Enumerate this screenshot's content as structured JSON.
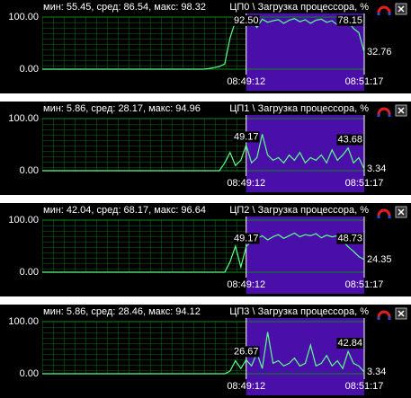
{
  "chart_data": [
    {
      "type": "line",
      "subtitle": "мин: 55.45, сред: 86.54, макс: 98.32",
      "title": "ЦП0 \\ Загрузка процессора, %",
      "color": "#5cff8a",
      "values": [
        0,
        0,
        0,
        0,
        0,
        0,
        0,
        0,
        0,
        0,
        0,
        0,
        0,
        0,
        0,
        0,
        0,
        0,
        0,
        0,
        0,
        0,
        0,
        0,
        0,
        0,
        0,
        0,
        0,
        0,
        0,
        1,
        3,
        5,
        10,
        60,
        92,
        85,
        92.5,
        95,
        80,
        96,
        90,
        93,
        95,
        88,
        94,
        97,
        91,
        95,
        88,
        94,
        96,
        90,
        93,
        85,
        95,
        92,
        78.15,
        70,
        32.76
      ],
      "ylim": [
        0,
        100
      ],
      "yticks": [
        {
          "value": 100,
          "label": "100.00"
        },
        {
          "value": 0,
          "label": "0.00"
        }
      ],
      "xlim": [
        0,
        60
      ],
      "xticks": [
        {
          "value": 38,
          "label": "08:49:12"
        },
        {
          "value": 60,
          "label": "08:51:17"
        }
      ],
      "annotations": [
        {
          "value": 92.5,
          "label": "92.50"
        },
        {
          "value": 78.15,
          "label": "78.15"
        },
        {
          "value": 32.76,
          "label": "32.76"
        }
      ]
    },
    {
      "type": "line",
      "subtitle": "мин: 5.86, сред: 28.17, макс: 94.96",
      "title": "ЦП1 \\ Загрузка процессора, %",
      "color": "#5cff8a",
      "values": [
        0,
        0,
        0,
        0,
        0,
        0,
        0,
        0,
        0,
        0,
        0,
        0,
        0,
        0,
        0,
        0,
        0,
        0,
        0,
        0,
        0,
        0,
        0,
        0,
        0,
        0,
        0,
        0,
        0,
        0,
        0,
        0,
        0,
        0,
        15,
        35,
        10,
        20,
        49.17,
        15,
        25,
        70,
        30,
        20,
        25,
        15,
        30,
        20,
        35,
        15,
        25,
        20,
        30,
        15,
        40,
        20,
        30,
        43.68,
        15,
        25,
        3.34
      ],
      "ylim": [
        0,
        100
      ],
      "yticks": [
        {
          "value": 100,
          "label": "100.00"
        },
        {
          "value": 0,
          "label": "0.00"
        }
      ],
      "xlim": [
        0,
        60
      ],
      "xticks": [
        {
          "value": 38,
          "label": "08:49:12"
        },
        {
          "value": 60,
          "label": "08:51:17"
        }
      ],
      "annotations": [
        {
          "value": 49.17,
          "label": "49.17"
        },
        {
          "value": 43.68,
          "label": "43.68"
        },
        {
          "value": 3.34,
          "label": "3.34"
        }
      ]
    },
    {
      "type": "line",
      "subtitle": "мин: 42.04, сред: 68.17, макс: 96.64",
      "title": "ЦП2 \\ Загрузка процессора, %",
      "color": "#5cff8a",
      "values": [
        0,
        0,
        0,
        0,
        0,
        0,
        0,
        0,
        0,
        0,
        0,
        0,
        0,
        0,
        0,
        0,
        0,
        0,
        0,
        0,
        0,
        0,
        0,
        0,
        0,
        0,
        0,
        0,
        0,
        0,
        0,
        0,
        0,
        0,
        0,
        20,
        50,
        10,
        49.17,
        60,
        65,
        70,
        62,
        68,
        72,
        65,
        70,
        75,
        68,
        72,
        70,
        74,
        66,
        71,
        68,
        70,
        60,
        48.73,
        40,
        30,
        24.35
      ],
      "ylim": [
        0,
        100
      ],
      "yticks": [
        {
          "value": 100,
          "label": "100.00"
        },
        {
          "value": 0,
          "label": "0.00"
        }
      ],
      "xlim": [
        0,
        60
      ],
      "xticks": [
        {
          "value": 38,
          "label": "08:49:12"
        },
        {
          "value": 60,
          "label": "08:51:17"
        }
      ],
      "annotations": [
        {
          "value": 49.17,
          "label": "49.17"
        },
        {
          "value": 48.73,
          "label": "48.73"
        },
        {
          "value": 24.35,
          "label": "24.35"
        }
      ]
    },
    {
      "type": "line",
      "subtitle": "мин: 5.86, сред: 28.46, макс: 94.12",
      "title": "ЦП3 \\ Загрузка процессора, %",
      "color": "#5cff8a",
      "values": [
        0,
        0,
        0,
        0,
        0,
        0,
        0,
        0,
        0,
        0,
        0,
        0,
        0,
        0,
        0,
        0,
        0,
        0,
        0,
        0,
        0,
        0,
        0,
        0,
        0,
        0,
        0,
        0,
        0,
        0,
        0,
        0,
        0,
        0,
        0,
        5,
        25,
        10,
        26.67,
        15,
        40,
        10,
        80,
        20,
        25,
        15,
        20,
        30,
        15,
        20,
        55,
        15,
        20,
        35,
        15,
        25,
        10,
        42.84,
        20,
        15,
        3.34
      ],
      "ylim": [
        0,
        100
      ],
      "yticks": [
        {
          "value": 100,
          "label": "100.00"
        },
        {
          "value": 0,
          "label": "0.00"
        }
      ],
      "xlim": [
        0,
        60
      ],
      "xticks": [
        {
          "value": 38,
          "label": "08:49:12"
        },
        {
          "value": 60,
          "label": "08:51:17"
        }
      ],
      "annotations": [
        {
          "value": 26.67,
          "label": "26.67"
        },
        {
          "value": 42.84,
          "label": "42.84"
        },
        {
          "value": 3.34,
          "label": "3.34"
        }
      ]
    }
  ]
}
